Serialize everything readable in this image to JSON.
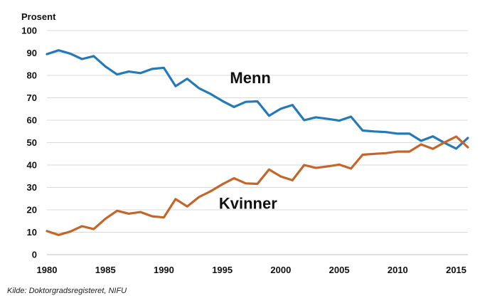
{
  "chart_data": {
    "type": "line",
    "ylabel": "Prosent",
    "xlim": [
      1980,
      2016
    ],
    "ylim": [
      0,
      100
    ],
    "yticks": [
      0,
      10,
      20,
      30,
      40,
      50,
      60,
      70,
      80,
      90,
      100
    ],
    "xticks": [
      1980,
      1985,
      1990,
      1995,
      2000,
      2005,
      2010,
      2015
    ],
    "grid": "horizontal",
    "x": [
      1980,
      1981,
      1982,
      1983,
      1984,
      1985,
      1986,
      1987,
      1988,
      1989,
      1990,
      1991,
      1992,
      1993,
      1994,
      1995,
      1996,
      1997,
      1998,
      1999,
      2000,
      2001,
      2002,
      2003,
      2004,
      2005,
      2006,
      2007,
      2008,
      2009,
      2010,
      2011,
      2012,
      2013,
      2014,
      2015,
      2016
    ],
    "series": [
      {
        "name": "Menn",
        "color": "#2479b8",
        "values": [
          89.5,
          91.2,
          89.7,
          87.3,
          88.6,
          84.0,
          80.4,
          81.7,
          81.0,
          82.9,
          83.4,
          75.2,
          78.5,
          74.3,
          71.7,
          68.6,
          65.9,
          68.2,
          68.4,
          62.0,
          65.1,
          66.8,
          60.0,
          61.3,
          60.6,
          59.8,
          61.6,
          55.4,
          55.0,
          54.7,
          54.0,
          54.0,
          50.8,
          52.8,
          49.9,
          47.3,
          52.1
        ]
      },
      {
        "name": "Kvinner",
        "color": "#c4652a",
        "values": [
          10.5,
          8.8,
          10.3,
          12.7,
          11.4,
          16.0,
          19.6,
          18.3,
          19.0,
          17.1,
          16.6,
          24.8,
          21.5,
          25.7,
          28.3,
          31.4,
          34.1,
          31.8,
          31.6,
          38.0,
          34.9,
          33.2,
          40.0,
          38.7,
          39.4,
          40.2,
          38.4,
          44.6,
          45.0,
          45.3,
          46.0,
          46.0,
          49.2,
          47.2,
          50.1,
          52.7,
          47.9
        ]
      }
    ],
    "annotations": [
      {
        "text": "Menn",
        "x": 1997.4,
        "y": 76.5
      },
      {
        "text": "Kvinner",
        "x": 1997.2,
        "y": 20.5
      }
    ]
  },
  "source": "Kilde: Doktorgradsregisteret, NIFU"
}
